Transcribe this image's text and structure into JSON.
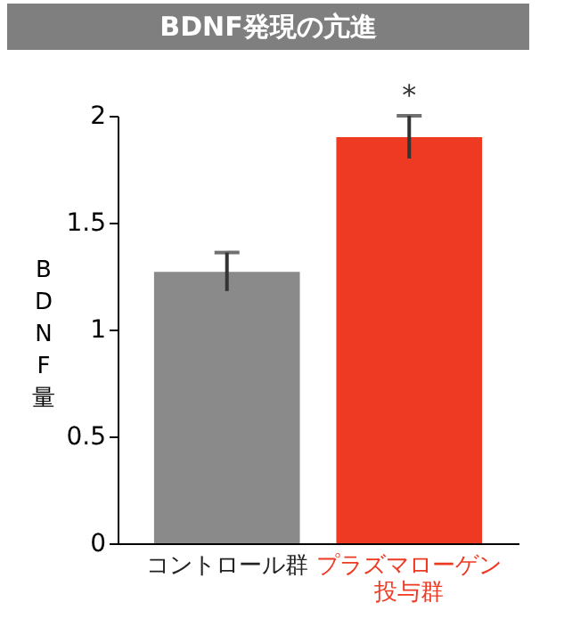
{
  "chart_data": {
    "type": "bar",
    "title": "BDNF発現の亢進",
    "ylabel": "BDNF量",
    "categories": [
      "コントロール群",
      "プラズマローゲン投与群"
    ],
    "values": [
      1.27,
      1.9
    ],
    "colors": [
      "#8a8a8a",
      "#ee3a23"
    ],
    "errors": [
      0.09,
      0.1
    ],
    "ylim": [
      0,
      2
    ],
    "yticks": [
      0,
      0.5,
      1,
      1.5,
      2
    ],
    "grid": false,
    "annotations": [
      {
        "text": "*",
        "x": "プラズマローゲン投与群",
        "y": 2.0
      }
    ]
  }
}
